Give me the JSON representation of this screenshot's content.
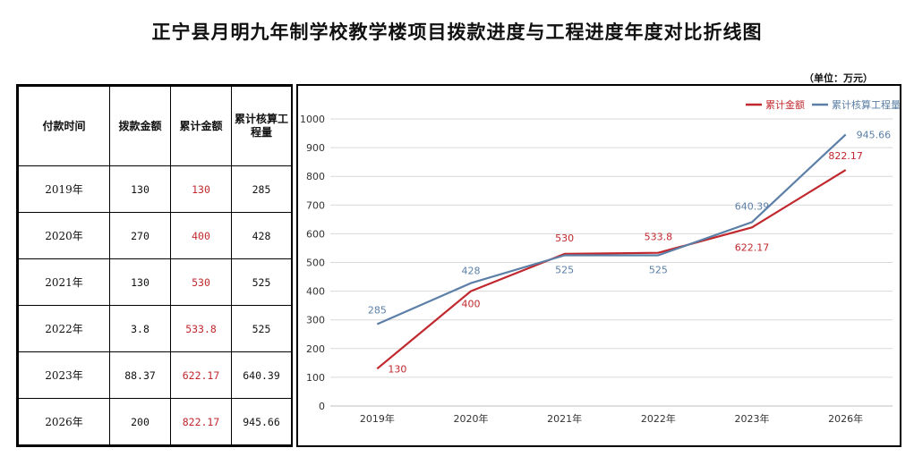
{
  "title": "正宁县月明九年制学校教学楼项目拨款进度与工程进度年度对比折线图",
  "unit": "（单位：万元）",
  "table": {
    "headers": [
      "付款时间",
      "拨款金额",
      "累计金额",
      "累计核算工程量"
    ],
    "rows": [
      [
        "2019年",
        "130",
        "130",
        "285"
      ],
      [
        "2020年",
        "270",
        "400",
        "428"
      ],
      [
        "2021年",
        "130",
        "530",
        "525"
      ],
      [
        "2022年",
        "3.8",
        "533.8",
        "525"
      ],
      [
        "2023年",
        "88.37",
        "622.17",
        "640.39"
      ],
      [
        "2026年",
        "200",
        "822.17",
        "945.66"
      ]
    ]
  },
  "chart_data": {
    "type": "line",
    "categories": [
      "2019年",
      "2020年",
      "2021年",
      "2022年",
      "2023年",
      "2026年"
    ],
    "ylim": [
      0,
      1000
    ],
    "ytick_step": 100,
    "grid": true,
    "legend_position": "top-right",
    "series": [
      {
        "name": "累计金额",
        "color": "#c0282e",
        "values": [
          130,
          400,
          530,
          533.8,
          622.17,
          822.17
        ],
        "labels": [
          "130",
          "400",
          "530",
          "533.8",
          "622.17",
          "822.17"
        ]
      },
      {
        "name": "累计核算工程量",
        "color": "#5b7fa6",
        "values": [
          285,
          428,
          525,
          525,
          640.39,
          945.66
        ],
        "labels": [
          "285",
          "428",
          "525",
          "525",
          "640.39",
          "945.66"
        ]
      }
    ]
  }
}
